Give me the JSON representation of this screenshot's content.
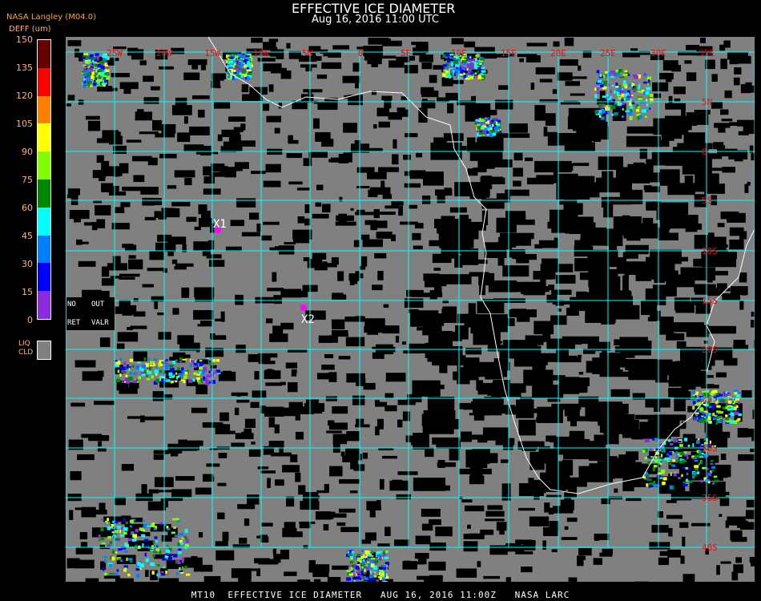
{
  "header": {
    "title": "EFFECTIVE ICE DIAMETER",
    "datetime": "Aug 16, 2016 11:00 UTC",
    "source": "NASA Langley (M04.0)"
  },
  "legend": {
    "unit": "DEFF (um)",
    "ticks": [
      "150",
      "135",
      "120",
      "105",
      "90",
      "75",
      "60",
      "45",
      "30",
      "15",
      "0"
    ],
    "colors": [
      "#660000",
      "#ff0000",
      "#ff8000",
      "#ffff00",
      "#80ff00",
      "#008800",
      "#00ffff",
      "#0080ff",
      "#0000ff",
      "#8a2be2"
    ],
    "no_retrieval": {
      "line1": "NO",
      "line2": "RET"
    },
    "out_of_range": {
      "line1": "OUT",
      "line2": "VALR"
    },
    "liquid_cloud": {
      "line1": "LIQ",
      "line2": "CLD",
      "color": "#808080"
    }
  },
  "map": {
    "lon_labels": [
      "25W",
      "20W",
      "15W",
      "10W",
      "5W",
      "0",
      "5E",
      "10E",
      "15E",
      "20E",
      "25E",
      "30E",
      "35E"
    ],
    "lat_labels": [
      "5N",
      "0",
      "5S",
      "10S",
      "15S",
      "20S",
      "25S",
      "30S",
      "35S",
      "40S"
    ],
    "grid_color": "#00ffff",
    "label_color": "#ff0000",
    "coast_color": "#ffffff",
    "markers": [
      {
        "label": "X1",
        "color": "#ff00ff"
      },
      {
        "label": "X2",
        "color": "#ff00ff"
      }
    ]
  },
  "footer": "MT10  EFFECTIVE ICE DIAMETER   AUG 16, 2016 11:00Z   NASA LARC"
}
